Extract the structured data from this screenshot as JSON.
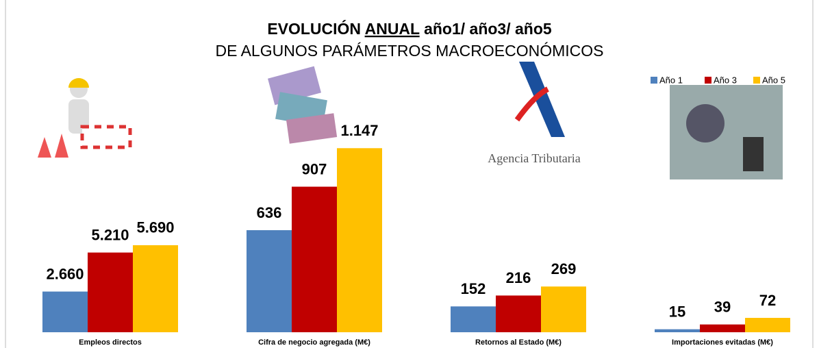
{
  "header": {
    "title_start": "EVOLUCIÓN",
    "title_underlined": "ANUAL",
    "title_end": "año1/ año3/ año5",
    "subtitle": "DE ALGUNOS PARÁMETROS MACROECONÓMICOS"
  },
  "logo_text": "Agencia Tributaria",
  "chart_data": [
    {
      "type": "bar",
      "categories": [
        "Empleos directos"
      ],
      "ylim": [
        0,
        15000
      ],
      "series": [
        {
          "name": "Año 1",
          "color": "#4f81bd",
          "values": [
            2660
          ],
          "value_labels": [
            "2.660"
          ]
        },
        {
          "name": "Año 3",
          "color": "#c00000",
          "values": [
            5210
          ],
          "value_labels": [
            "5.210"
          ]
        },
        {
          "name": "Año 5",
          "color": "#ffc000",
          "values": [
            5690
          ],
          "value_labels": [
            "5.690"
          ]
        }
      ]
    },
    {
      "type": "bar",
      "categories": [
        "Cifra de negocio agregada (M€)"
      ],
      "ylim": [
        0,
        1430
      ],
      "series": [
        {
          "name": "Año 1",
          "color": "#4f81bd",
          "values": [
            636
          ],
          "value_labels": [
            "636"
          ]
        },
        {
          "name": "Año 3",
          "color": "#c00000",
          "values": [
            907
          ],
          "value_labels": [
            "907"
          ]
        },
        {
          "name": "Año 5",
          "color": "#ffc000",
          "values": [
            1147
          ],
          "value_labels": [
            "1.147"
          ]
        }
      ]
    },
    {
      "type": "bar",
      "categories": [
        "Retornos al Estado (M€)"
      ],
      "ylim": [
        0,
        1350
      ],
      "series": [
        {
          "name": "Año 1",
          "color": "#4f81bd",
          "values": [
            152
          ],
          "value_labels": [
            "152"
          ]
        },
        {
          "name": "Año 3",
          "color": "#c00000",
          "values": [
            216
          ],
          "value_labels": [
            "216"
          ]
        },
        {
          "name": "Año 5",
          "color": "#ffc000",
          "values": [
            269
          ],
          "value_labels": [
            "269"
          ]
        }
      ]
    },
    {
      "type": "bar",
      "categories": [
        "Importaciones evitadas (M€)"
      ],
      "ylim": [
        0,
        1150
      ],
      "series": [
        {
          "name": "Año 1",
          "color": "#4f81bd",
          "values": [
            15
          ],
          "value_labels": [
            "15"
          ]
        },
        {
          "name": "Año 3",
          "color": "#c00000",
          "values": [
            39
          ],
          "value_labels": [
            "39"
          ]
        },
        {
          "name": "Año 5",
          "color": "#ffc000",
          "values": [
            72
          ],
          "value_labels": [
            "72"
          ]
        }
      ]
    }
  ]
}
